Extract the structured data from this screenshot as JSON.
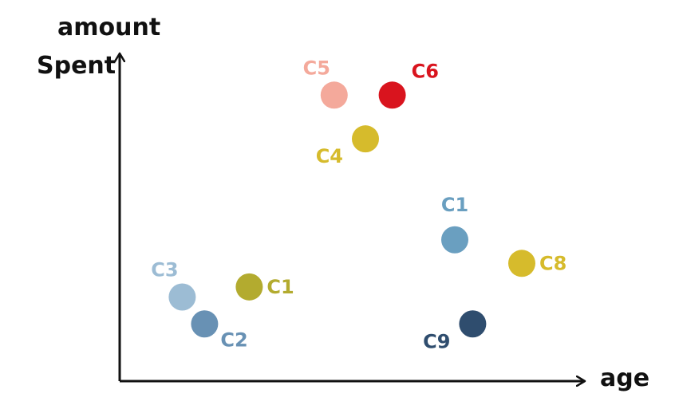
{
  "chart_data": {
    "type": "scatter",
    "title": "",
    "xlabel": "age",
    "ylabel_line1": "amount",
    "ylabel_line2": "Spent",
    "ticks": false,
    "grid": false,
    "legend": "none",
    "xlim": [
      0,
      100
    ],
    "ylim": [
      0,
      100
    ],
    "points": [
      {
        "label": "C5",
        "x": 48,
        "y": 85,
        "color": "#f4a99b",
        "label_pos": "above-left"
      },
      {
        "label": "C6",
        "x": 61,
        "y": 85,
        "color": "#d9141e",
        "label_pos": "above-right"
      },
      {
        "label": "C4",
        "x": 55,
        "y": 72,
        "color": "#d6bb2c",
        "label_pos": "below-left"
      },
      {
        "label": "C1",
        "x": 75,
        "y": 42,
        "color": "#6a9fc0",
        "label_pos": "above"
      },
      {
        "label": "C8",
        "x": 90,
        "y": 35,
        "color": "#d6bb2c",
        "label_pos": "right"
      },
      {
        "label": "C9",
        "x": 79,
        "y": 17,
        "color": "#2f4d6e",
        "label_pos": "below-left"
      },
      {
        "label": "C3",
        "x": 14,
        "y": 25,
        "color": "#9cbcd4",
        "label_pos": "above-left"
      },
      {
        "label": "C2",
        "x": 19,
        "y": 17,
        "color": "#6891b4",
        "label_pos": "below-right"
      },
      {
        "label": "C1",
        "x": 29,
        "y": 28,
        "color": "#b3ab2f",
        "label_pos": "right"
      }
    ]
  }
}
